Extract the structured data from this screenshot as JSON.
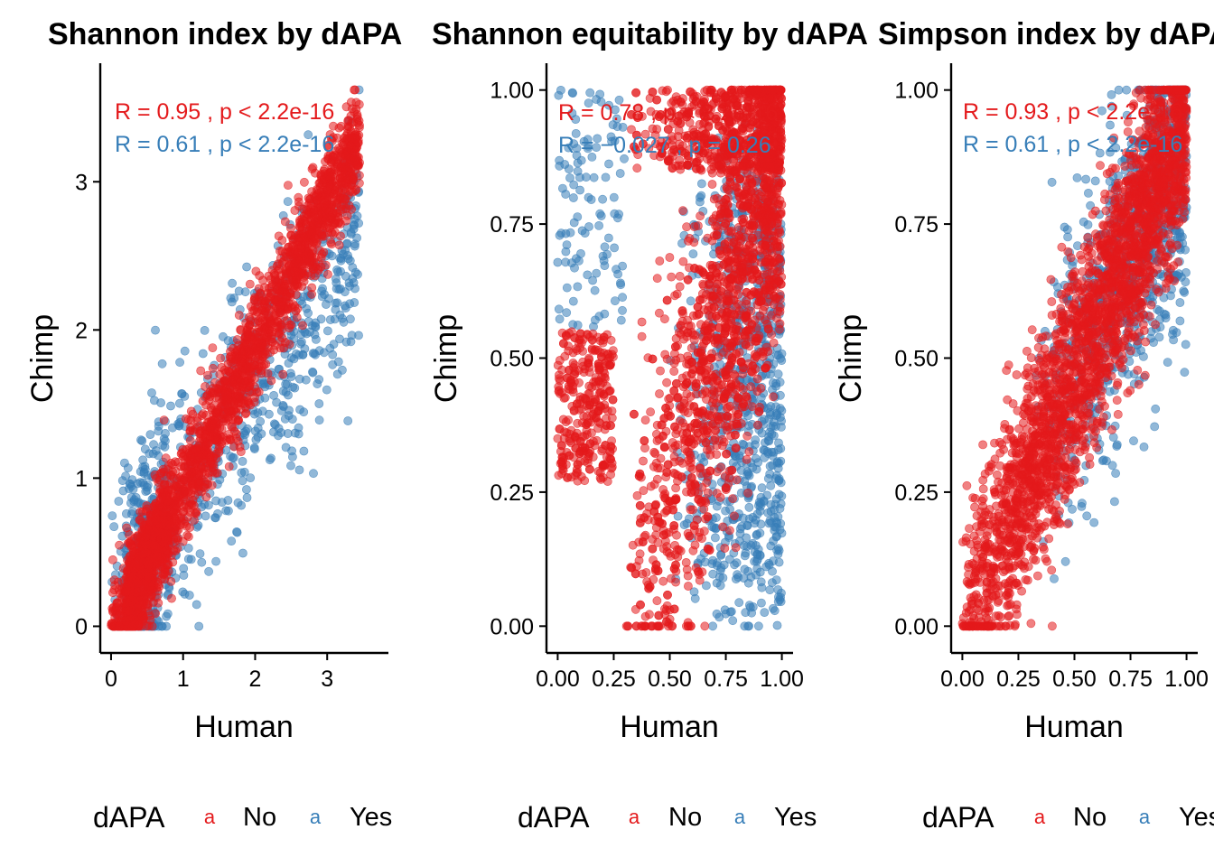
{
  "colors": {
    "no": "#E41A1C",
    "yes": "#377EB8"
  },
  "legend": {
    "title": "dAPA",
    "key_glyph": "a",
    "no_label": "No",
    "yes_label": "Yes"
  },
  "panels": [
    {
      "title": "Shannon index by dAPA",
      "xlabel": "Human",
      "ylabel": "Chimp",
      "stat_no": "R = 0.95 , p < 2.2e-16",
      "stat_yes": "R = 0.61 , p < 2.2e-16",
      "xticks": [
        "0",
        "1",
        "2",
        "3"
      ],
      "yticks": [
        "0",
        "1",
        "2",
        "3"
      ]
    },
    {
      "title": "Shannon equitability by dAPA",
      "xlabel": "Human",
      "ylabel": "Chimp",
      "stat_no": "R = 0.78 , p < 2.2e-16",
      "stat_yes": "R = −0.027 , p = 0.26",
      "xticks": [
        "0.00",
        "0.25",
        "0.50",
        "0.75",
        "1.00"
      ],
      "yticks": [
        "0.00",
        "0.25",
        "0.50",
        "0.75",
        "1.00"
      ]
    },
    {
      "title": "Simpson index by dAPA",
      "xlabel": "Human",
      "ylabel": "Chimp",
      "stat_no": "R = 0.93 , p < 2.2e-16",
      "stat_yes": "R = 0.61 , p < 2.2e-16",
      "xticks": [
        "0.00",
        "0.25",
        "0.50",
        "0.75",
        "1.00"
      ],
      "yticks": [
        "0.00",
        "0.25",
        "0.50",
        "0.75",
        "1.00"
      ]
    }
  ],
  "chart_data": [
    {
      "type": "scatter",
      "title": "Shannon index by dAPA",
      "xlabel": "Human",
      "ylabel": "Chimp",
      "xlim": [
        -0.15,
        3.85
      ],
      "ylim": [
        -0.18,
        3.8
      ],
      "xticks": [
        0,
        1,
        2,
        3
      ],
      "yticks": [
        0,
        1,
        2,
        3
      ],
      "grid": false,
      "legend_position": "bottom",
      "series": [
        {
          "name": "No",
          "color": "#E41A1C",
          "n_points": 2600,
          "correlation_R": 0.95,
          "p_value": "< 2.2e-16",
          "x_range": [
            0.0,
            3.6
          ],
          "y_range": [
            0.0,
            3.6
          ]
        },
        {
          "name": "Yes",
          "color": "#377EB8",
          "n_points": 900,
          "correlation_R": 0.61,
          "p_value": "< 2.2e-16",
          "x_range": [
            0.0,
            3.5
          ],
          "y_range": [
            0.0,
            3.3
          ]
        }
      ]
    },
    {
      "type": "scatter",
      "title": "Shannon equitability by dAPA",
      "xlabel": "Human",
      "ylabel": "Chimp",
      "xlim": [
        -0.05,
        1.05
      ],
      "ylim": [
        -0.05,
        1.05
      ],
      "xticks": [
        0.0,
        0.25,
        0.5,
        0.75,
        1.0
      ],
      "yticks": [
        0.0,
        0.25,
        0.5,
        0.75,
        1.0
      ],
      "grid": false,
      "legend_position": "bottom",
      "series": [
        {
          "name": "No",
          "color": "#E41A1C",
          "n_points": 2600,
          "correlation_R": 0.78,
          "p_value": "< 2.2e-16",
          "x_range": [
            0.0,
            1.0
          ],
          "y_range": [
            0.0,
            1.0
          ]
        },
        {
          "name": "Yes",
          "color": "#377EB8",
          "n_points": 900,
          "correlation_R": -0.027,
          "p_value": "= 0.26",
          "x_range": [
            0.0,
            1.0
          ],
          "y_range": [
            0.0,
            1.0
          ]
        }
      ]
    },
    {
      "type": "scatter",
      "title": "Simpson index by dAPA",
      "xlabel": "Human",
      "ylabel": "Chimp",
      "xlim": [
        -0.05,
        1.05
      ],
      "ylim": [
        -0.05,
        1.05
      ],
      "xticks": [
        0.0,
        0.25,
        0.5,
        0.75,
        1.0
      ],
      "yticks": [
        0.0,
        0.25,
        0.5,
        0.75,
        1.0
      ],
      "grid": false,
      "legend_position": "bottom",
      "series": [
        {
          "name": "No",
          "color": "#E41A1C",
          "n_points": 2600,
          "correlation_R": 0.93,
          "p_value": "< 2.2e-16",
          "x_range": [
            0.0,
            1.0
          ],
          "y_range": [
            0.0,
            1.0
          ]
        },
        {
          "name": "Yes",
          "color": "#377EB8",
          "n_points": 900,
          "correlation_R": 0.61,
          "p_value": "< 2.2e-16",
          "x_range": [
            0.0,
            1.0
          ],
          "y_range": [
            0.0,
            1.0
          ]
        }
      ]
    }
  ]
}
